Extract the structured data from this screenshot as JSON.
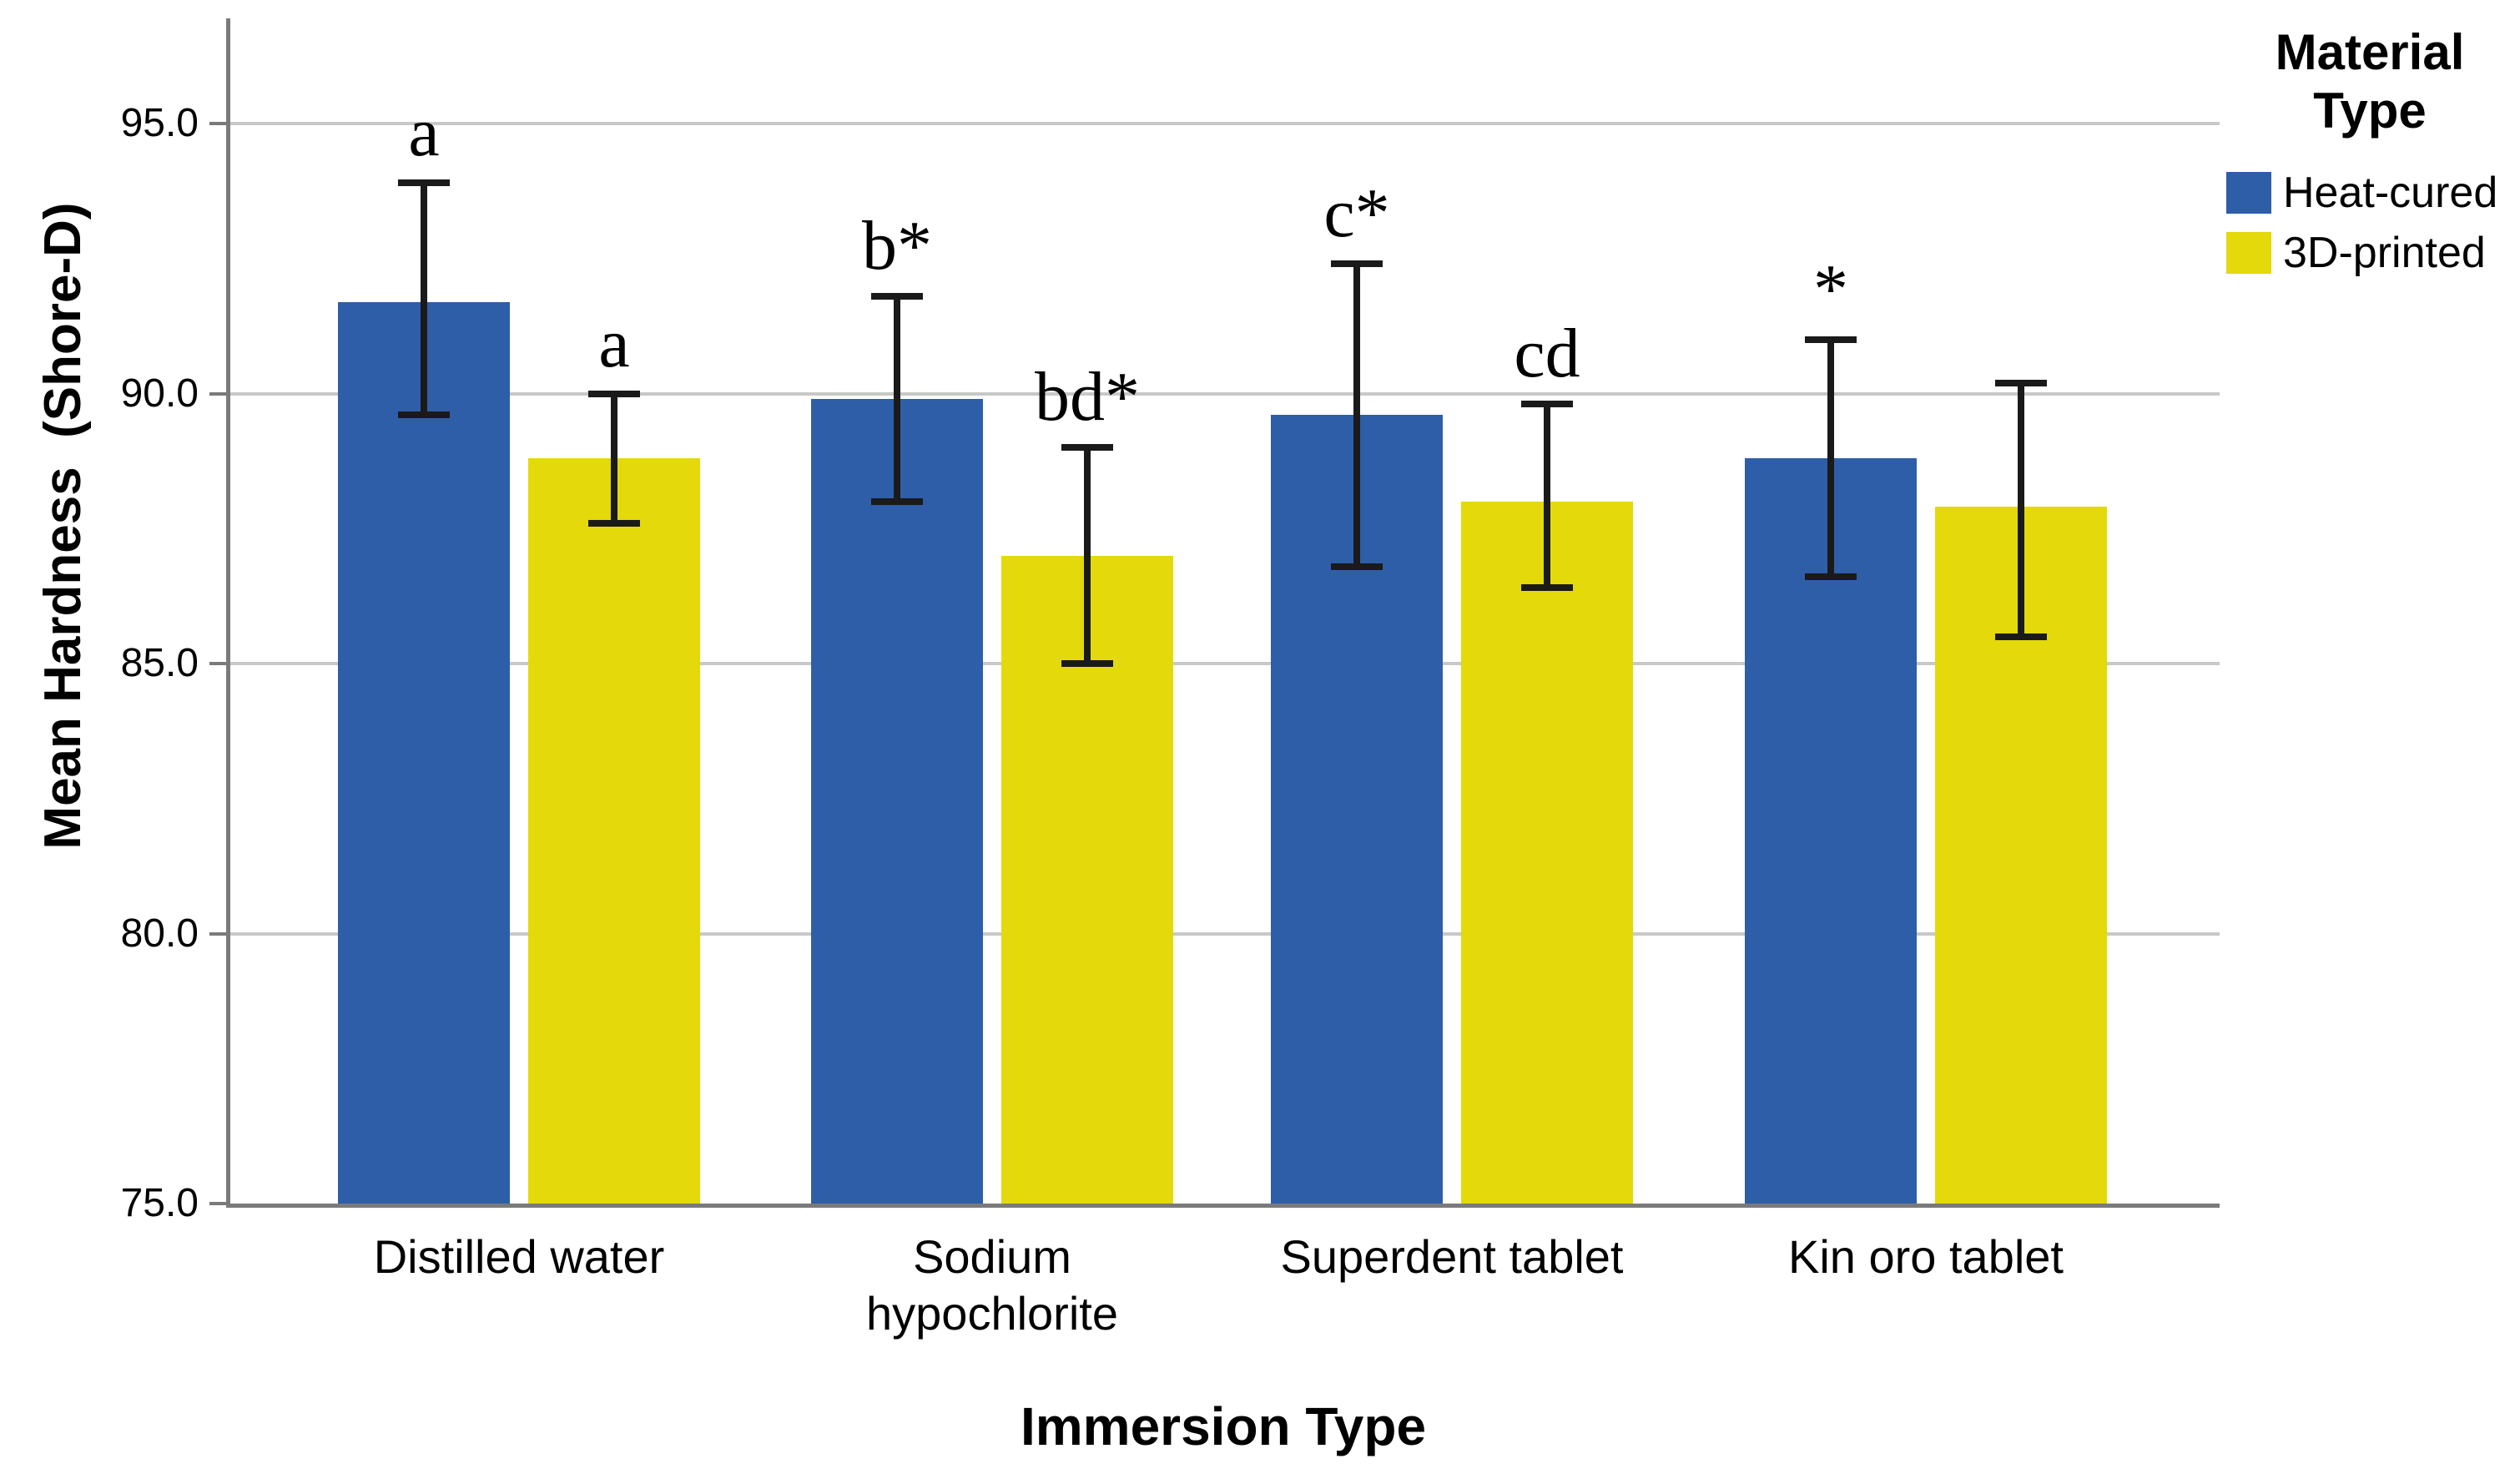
{
  "chart_data": {
    "type": "bar",
    "title": "",
    "xlabel": "Immersion Type",
    "ylabel": "Mean Hardness  (Shore-D)",
    "legend_title": "Material Type",
    "legend_position": "right",
    "grid": true,
    "ylim": [
      75.0,
      97.0
    ],
    "yticks": [
      {
        "label": "75.0",
        "value": 75
      },
      {
        "label": "80.0",
        "value": 80
      },
      {
        "label": "85.0",
        "value": 85
      },
      {
        "label": "90.0",
        "value": 90
      },
      {
        "label": "95.0",
        "value": 95
      }
    ],
    "categories": [
      "Distilled water",
      "Sodium hypochlorite",
      "Superdent tablet",
      "Kin oro tablet"
    ],
    "series": [
      {
        "name": "Heat-cured",
        "color": "#2F5EA8",
        "values": [
          91.7,
          89.9,
          89.6,
          88.8
        ],
        "err_low": [
          89.6,
          88.0,
          86.8,
          86.6
        ],
        "err_high": [
          93.9,
          91.8,
          92.4,
          91.0
        ],
        "labels": [
          "a",
          "b*",
          "c*",
          "*"
        ]
      },
      {
        "name": "3D-printed",
        "color": "#E3D90B",
        "values": [
          88.8,
          87.0,
          88.0,
          87.9
        ],
        "err_low": [
          87.6,
          85.0,
          86.4,
          85.5
        ],
        "err_high": [
          90.0,
          89.0,
          89.8,
          90.2
        ],
        "labels": [
          "a",
          "bd*",
          "cd",
          ""
        ]
      }
    ],
    "colors": {
      "gridline": "#C8C8C8",
      "axis": "#7A7A7A",
      "error_bar": "#1A1A1A",
      "text": "#000000",
      "background": "#FFFFFF"
    }
  }
}
